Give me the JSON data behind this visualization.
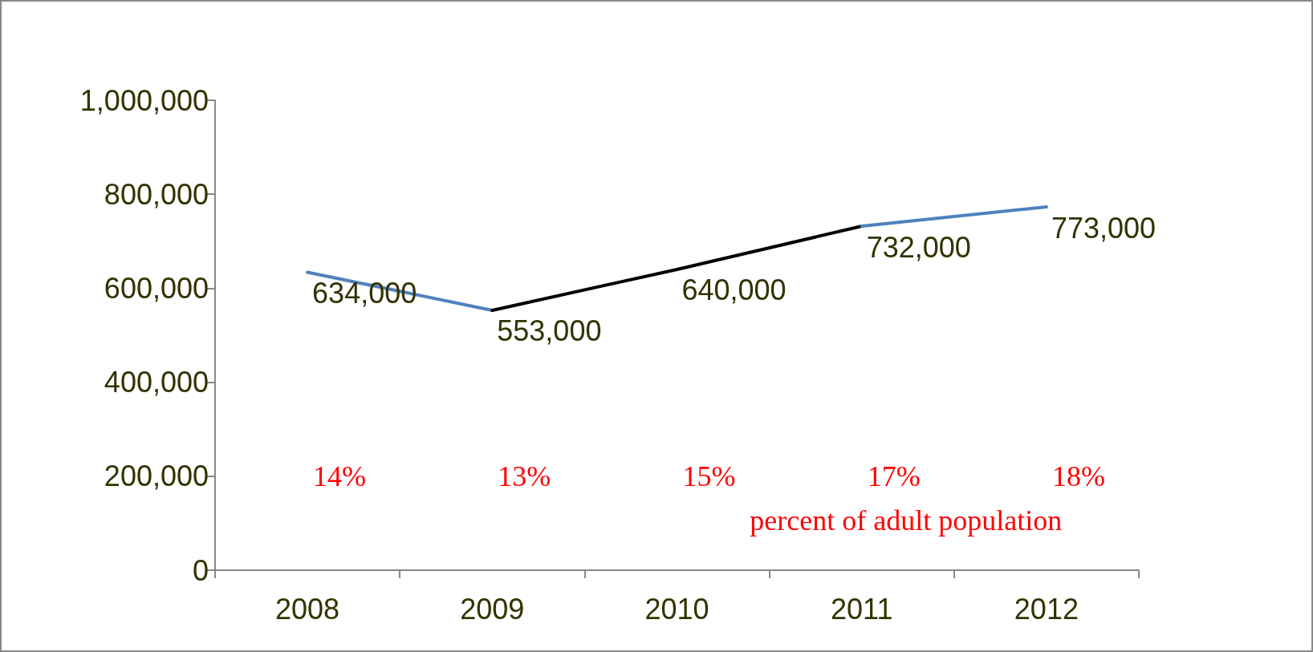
{
  "chart_data": {
    "type": "line",
    "categories": [
      "2008",
      "2009",
      "2010",
      "2011",
      "2012"
    ],
    "series": [
      {
        "color": "#4f81bd",
        "values": [
          634000,
          553000,
          null,
          null,
          null
        ],
        "value_labels": [
          "634,000",
          null,
          null,
          null,
          null
        ]
      },
      {
        "color": "#000000",
        "values": [
          null,
          553000,
          640000,
          732000,
          null
        ],
        "value_labels": [
          null,
          "553,000",
          "640,000",
          null,
          null
        ]
      },
      {
        "color": "#4f81bd",
        "values": [
          null,
          null,
          null,
          732000,
          773000
        ],
        "value_labels": [
          null,
          null,
          null,
          "732,000",
          "773,000"
        ]
      }
    ],
    "ylim": [
      0,
      1000000
    ],
    "yticks": [
      0,
      {
        "value": 200000,
        "label": "200,000"
      },
      {
        "value": 400000,
        "label": "400,000"
      },
      {
        "value": 600000,
        "label": "600,000"
      },
      {
        "value": 800000,
        "label": "800,000"
      },
      {
        "value": 1000000,
        "label": "1,000,000"
      }
    ],
    "grid": false,
    "marker": "none",
    "line_style": "solid",
    "annotations": [
      "14%",
      "13%",
      "15%",
      "17%",
      "18%",
      "percent of adult population"
    ]
  }
}
